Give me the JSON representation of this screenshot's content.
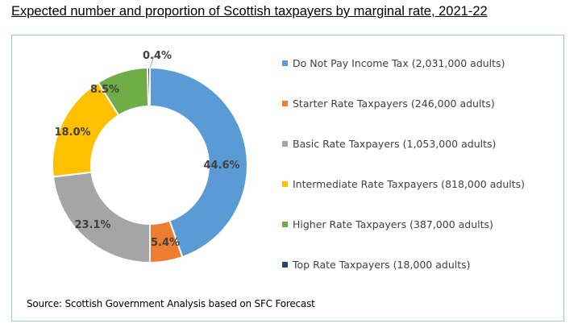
{
  "title": "Expected number and proportion of Scottish taxpayers by marginal rate, 2021-22",
  "source": "Source: Scottish Government Analysis based on SFC Forecast",
  "chart_data": {
    "type": "pie",
    "subtype": "donut",
    "title": "Expected number and proportion of Scottish taxpayers by marginal rate, 2021-22",
    "categories": [
      "Do Not Pay Income Tax",
      "Starter Rate Taxpayers",
      "Basic Rate Taxpayers",
      "Intermediate Rate Taxpayers",
      "Higher Rate Taxpayers",
      "Top Rate Taxpayers"
    ],
    "values": [
      44.6,
      5.4,
      23.1,
      18.0,
      8.5,
      0.4
    ],
    "adults": [
      2031000,
      246000,
      1053000,
      818000,
      387000,
      18000
    ],
    "labels": [
      "44.6%",
      "5.4%",
      "23.1%",
      "18.0%",
      "8.5%",
      "0.4%"
    ],
    "colors": [
      "#5b9bd5",
      "#ed7d31",
      "#a5a5a5",
      "#ffc000",
      "#70ad47",
      "#264478"
    ],
    "legend_position": "right",
    "start_angle_deg": 0,
    "direction": "clockwise"
  },
  "legend": [
    {
      "label": "Do Not Pay Income Tax (2,031,000 adults)",
      "color": "#5b9bd5"
    },
    {
      "label": "Starter Rate Taxpayers (246,000 adults)",
      "color": "#ed7d31"
    },
    {
      "label": "Basic Rate Taxpayers (1,053,000 adults)",
      "color": "#a5a5a5"
    },
    {
      "label": "Intermediate Rate Taxpayers  (818,000 adults)",
      "color": "#ffc000"
    },
    {
      "label": "Higher Rate Taxpayers (387,000 adults)",
      "color": "#70ad47"
    },
    {
      "label": "Top Rate Taxpayers (18,000 adults)",
      "color": "#264478"
    }
  ]
}
